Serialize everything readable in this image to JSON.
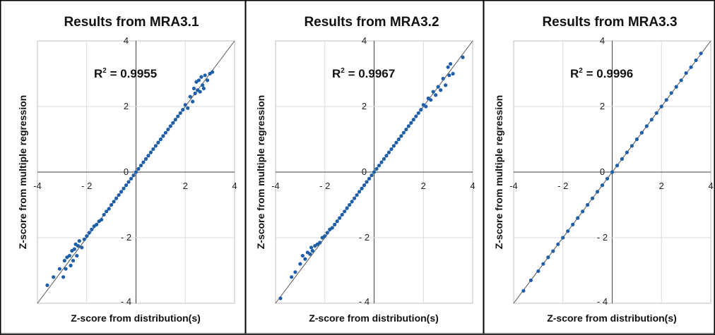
{
  "chart_data": [
    {
      "type": "scatter",
      "title": "Results  from  MRA3.1",
      "xlabel": "Z-score from distribution(s)",
      "ylabel": "Z-score from multiple regression",
      "r2_label": "R",
      "r2_sup": "2",
      "r2_value": " = 0.9955",
      "xlim": [
        -4,
        4
      ],
      "ylim": [
        -4,
        4
      ],
      "x_ticks": [
        -4,
        -2,
        0,
        2,
        4
      ],
      "y_ticks": [
        -4,
        -2,
        0,
        2,
        4
      ],
      "x_tick_labels": [
        "-4",
        "- 2",
        "0",
        "2",
        "4"
      ],
      "y_tick_labels": [
        "- 4",
        "- 2",
        "0",
        "2",
        "4"
      ],
      "grid": true,
      "diagonal": true,
      "series": [
        {
          "color": "#1f5fa8",
          "x": [
            -3.6,
            -3.35,
            -3.1,
            -2.95,
            -2.9,
            -2.85,
            -2.8,
            -2.7,
            -2.65,
            -2.6,
            -2.55,
            -2.5,
            -2.45,
            -2.4,
            -2.35,
            -2.3,
            -2.2,
            -2.1,
            -2.0,
            -1.9,
            -1.8,
            -1.7,
            -1.6,
            -1.5,
            -1.4,
            -1.3,
            -1.2,
            -1.1,
            -1.0,
            -0.9,
            -0.8,
            -0.7,
            -0.6,
            -0.5,
            -0.4,
            -0.3,
            -0.2,
            -0.1,
            0.0,
            0.1,
            0.2,
            0.3,
            0.4,
            0.5,
            0.6,
            0.7,
            0.8,
            0.9,
            1.0,
            1.1,
            1.2,
            1.3,
            1.4,
            1.5,
            1.6,
            1.7,
            1.8,
            1.9,
            2.0,
            2.1,
            2.2,
            2.3,
            2.35,
            2.4,
            2.45,
            2.5,
            2.55,
            2.6,
            2.65,
            2.7,
            2.75,
            2.8,
            2.9,
            3.0,
            3.1
          ],
          "y": [
            -3.45,
            -3.2,
            -2.95,
            -3.2,
            -2.7,
            -2.95,
            -2.6,
            -2.55,
            -2.85,
            -2.4,
            -2.7,
            -2.35,
            -2.2,
            -2.55,
            -2.25,
            -2.1,
            -2.3,
            -2.05,
            -1.95,
            -1.85,
            -1.75,
            -1.65,
            -1.6,
            -1.5,
            -1.45,
            -1.3,
            -1.2,
            -1.12,
            -1.0,
            -0.9,
            -0.8,
            -0.7,
            -0.6,
            -0.5,
            -0.4,
            -0.3,
            -0.2,
            -0.1,
            0.0,
            0.1,
            0.2,
            0.3,
            0.4,
            0.5,
            0.6,
            0.7,
            0.8,
            0.9,
            1.0,
            1.1,
            1.2,
            1.3,
            1.4,
            1.5,
            1.6,
            1.7,
            1.8,
            1.9,
            2.05,
            1.95,
            2.3,
            2.15,
            2.55,
            2.4,
            2.75,
            2.5,
            2.8,
            2.45,
            2.9,
            2.65,
            2.55,
            2.95,
            2.8,
            3.0,
            3.05
          ]
        }
      ]
    },
    {
      "type": "scatter",
      "title": "Results  from  MRA3.2",
      "xlabel": "Z-score from distribution(s)",
      "ylabel": "Z-score from multiple regression",
      "r2_label": "R",
      "r2_sup": "2",
      "r2_value": " = 0.9967",
      "xlim": [
        -4,
        4
      ],
      "ylim": [
        -4,
        4
      ],
      "x_ticks": [
        -4,
        -2,
        0,
        2,
        4
      ],
      "y_ticks": [
        -4,
        -2,
        0,
        2,
        4
      ],
      "x_tick_labels": [
        "-4",
        "- 2",
        "0",
        "2",
        "4"
      ],
      "y_tick_labels": [
        "- 4",
        "- 2",
        "0",
        "2",
        "4"
      ],
      "grid": true,
      "diagonal": true,
      "series": [
        {
          "color": "#1f5fa8",
          "x": [
            -3.8,
            -3.35,
            -3.2,
            -3.0,
            -2.9,
            -2.8,
            -2.7,
            -2.6,
            -2.55,
            -2.5,
            -2.4,
            -2.3,
            -2.2,
            -2.1,
            -2.0,
            -1.9,
            -1.8,
            -1.7,
            -1.6,
            -1.5,
            -1.4,
            -1.3,
            -1.2,
            -1.1,
            -1.0,
            -0.9,
            -0.8,
            -0.7,
            -0.6,
            -0.5,
            -0.4,
            -0.3,
            -0.2,
            -0.1,
            0.0,
            0.1,
            0.2,
            0.3,
            0.4,
            0.5,
            0.6,
            0.7,
            0.8,
            0.9,
            1.0,
            1.1,
            1.2,
            1.3,
            1.4,
            1.5,
            1.6,
            1.7,
            1.8,
            1.9,
            2.0,
            2.1,
            2.2,
            2.3,
            2.4,
            2.5,
            2.6,
            2.7,
            2.8,
            2.9,
            3.0,
            3.05,
            3.1,
            3.2,
            3.6
          ],
          "y": [
            -3.85,
            -3.2,
            -3.05,
            -2.8,
            -2.55,
            -2.65,
            -2.45,
            -2.5,
            -2.3,
            -2.4,
            -2.25,
            -2.2,
            -2.15,
            -2.0,
            -1.95,
            -1.85,
            -1.75,
            -1.7,
            -1.6,
            -1.5,
            -1.4,
            -1.3,
            -1.2,
            -1.1,
            -1.0,
            -0.9,
            -0.8,
            -0.7,
            -0.6,
            -0.5,
            -0.4,
            -0.3,
            -0.2,
            -0.1,
            0.0,
            0.1,
            0.2,
            0.3,
            0.4,
            0.5,
            0.6,
            0.7,
            0.8,
            0.9,
            1.0,
            1.1,
            1.2,
            1.3,
            1.4,
            1.5,
            1.6,
            1.7,
            1.8,
            1.9,
            2.05,
            2.0,
            2.25,
            2.2,
            2.45,
            2.35,
            2.6,
            2.5,
            2.85,
            2.65,
            3.2,
            2.95,
            3.3,
            3.0,
            3.5
          ]
        }
      ]
    },
    {
      "type": "scatter",
      "title": "Results  from  MRA3.3",
      "xlabel": "Z-score from distribution(s)",
      "ylabel": "Z-score from multiple regression",
      "r2_label": "R",
      "r2_sup": "2",
      "r2_value": " = 0.9996",
      "xlim": [
        -4,
        4
      ],
      "ylim": [
        -4,
        4
      ],
      "x_ticks": [
        -4,
        -2,
        0,
        2,
        4
      ],
      "y_ticks": [
        -4,
        -2,
        0,
        2,
        4
      ],
      "x_tick_labels": [
        "-4",
        "- 2",
        "0",
        "2",
        "4"
      ],
      "y_tick_labels": [
        "- 4",
        "- 2",
        "0",
        "2",
        "4"
      ],
      "grid": true,
      "diagonal": true,
      "series": [
        {
          "color": "#1f5fa8",
          "x": [
            -3.6,
            -3.3,
            -3.0,
            -2.8,
            -2.6,
            -2.4,
            -2.2,
            -2.0,
            -1.8,
            -1.6,
            -1.4,
            -1.2,
            -1.0,
            -0.8,
            -0.6,
            -0.4,
            -0.2,
            0.0,
            0.2,
            0.4,
            0.6,
            0.8,
            1.0,
            1.2,
            1.4,
            1.6,
            1.8,
            2.0,
            2.2,
            2.4,
            2.6,
            2.8,
            3.0,
            3.2,
            3.4,
            3.6
          ],
          "y": [
            -3.62,
            -3.3,
            -3.02,
            -2.8,
            -2.6,
            -2.41,
            -2.2,
            -2.0,
            -1.8,
            -1.6,
            -1.4,
            -1.2,
            -1.0,
            -0.8,
            -0.6,
            -0.4,
            -0.2,
            0.0,
            0.2,
            0.4,
            0.6,
            0.8,
            1.0,
            1.2,
            1.4,
            1.6,
            1.8,
            2.0,
            2.2,
            2.41,
            2.6,
            2.8,
            3.02,
            3.2,
            3.41,
            3.62
          ]
        }
      ]
    }
  ]
}
